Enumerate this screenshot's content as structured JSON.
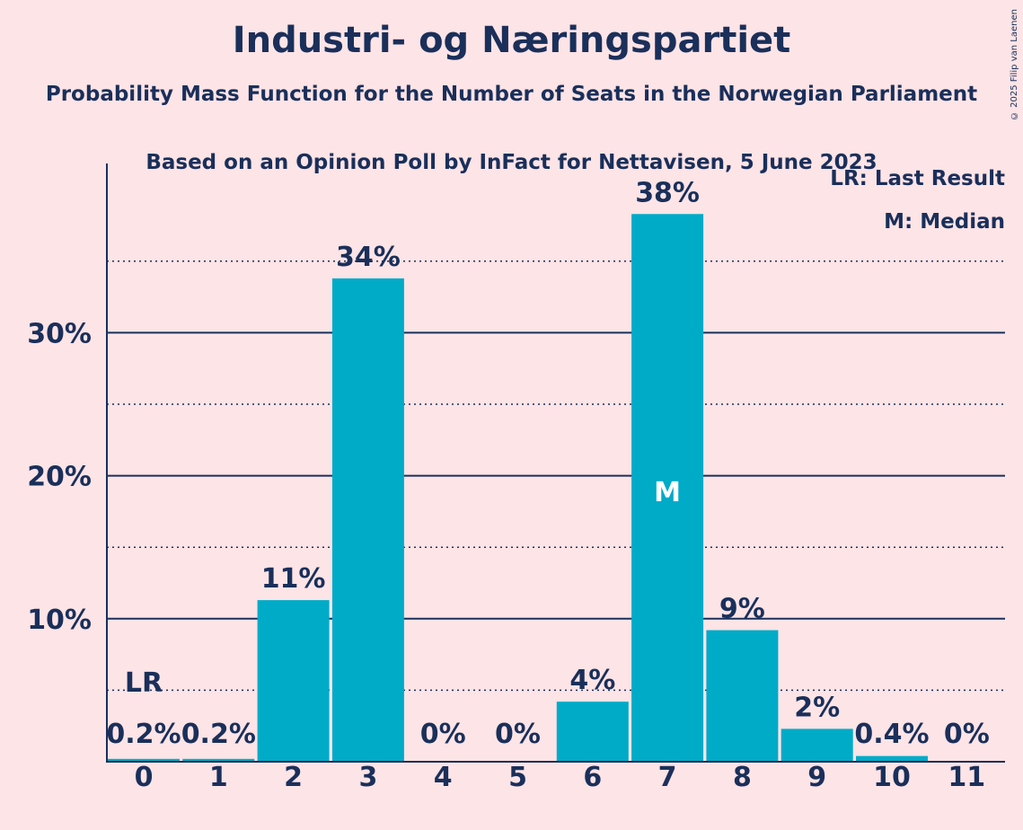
{
  "chart_data": {
    "type": "bar",
    "title": "Industri- og Næringspartiet",
    "subtitle": "Probability Mass Function for the Number of Seats in the Norwegian Parliament",
    "subtitle2": "Based on an Opinion Poll by InFact for Nettavisen, 5 June 2023",
    "copyright": "© 2025 Filip van Laenen",
    "categories": [
      "0",
      "1",
      "2",
      "3",
      "4",
      "5",
      "6",
      "7",
      "8",
      "9",
      "10",
      "11"
    ],
    "values": [
      0.2,
      0.2,
      11.3,
      33.8,
      0,
      0,
      4.2,
      38.3,
      9.2,
      2.3,
      0.4,
      0
    ],
    "labels": [
      "0.2%",
      "0.2%",
      "11%",
      "34%",
      "0%",
      "0%",
      "4%",
      "38%",
      "9%",
      "2%",
      "0.4%",
      "0%"
    ],
    "ylim": [
      0,
      41.5
    ],
    "yticks": [
      10,
      20,
      30
    ],
    "ytick_labels": [
      "10%",
      "20%",
      "30%"
    ],
    "minor_gridlines": [
      5,
      15,
      25,
      35
    ],
    "last_result_index": 0,
    "last_result_marker": "LR",
    "median_index": 7,
    "median_marker": "M",
    "legend": [
      "LR: Last Result",
      "M: Median"
    ],
    "colors": {
      "bar": "#00abc8",
      "text": "#1a2f5a",
      "background": "#fde4e6"
    }
  }
}
